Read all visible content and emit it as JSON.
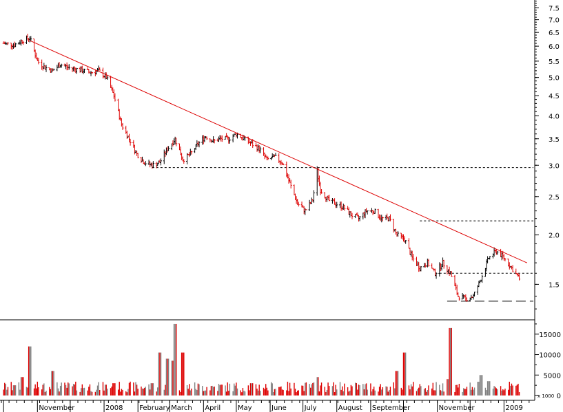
{
  "chart_data": [
    {
      "type": "line",
      "panel": "price",
      "scale": "log",
      "ylim": [
        1.22,
        7.85
      ],
      "y_ticks": [
        "7.5",
        "7.0",
        "6.5",
        "6.0",
        "5.5",
        "5.0",
        "4.5",
        "4.0",
        "3.5",
        "3.0",
        "2.5",
        "2.0",
        "1.5"
      ],
      "x_labels": [
        "November",
        "2008",
        "February",
        "March",
        "April",
        "May",
        "June",
        "July",
        "August",
        "September",
        "November",
        "2009"
      ],
      "grid": false,
      "series": [
        {
          "x": [
            "2007-10-01",
            "2007-10-11",
            "2007-10-18",
            "2007-10-25",
            "2007-11-01",
            "2007-11-08",
            "2007-11-15",
            "2007-11-22",
            "2007-11-29",
            "2007-12-06",
            "2007-12-13",
            "2007-12-20",
            "2007-12-27",
            "2008-01-03",
            "2008-01-10",
            "2008-01-17",
            "2008-01-24",
            "2008-01-31",
            "2008-02-07",
            "2008-02-14",
            "2008-02-21",
            "2008-02-28",
            "2008-03-06",
            "2008-03-13",
            "2008-03-20",
            "2008-03-27",
            "2008-04-03",
            "2008-04-10",
            "2008-04-17",
            "2008-04-24",
            "2008-05-01",
            "2008-05-08",
            "2008-05-15",
            "2008-05-22",
            "2008-05-29",
            "2008-06-05",
            "2008-06-12",
            "2008-06-19",
            "2008-06-26",
            "2008-07-03",
            "2008-07-10",
            "2008-07-14",
            "2008-07-17",
            "2008-07-24",
            "2008-07-31",
            "2008-08-07",
            "2008-08-14",
            "2008-08-21",
            "2008-08-28",
            "2008-09-04",
            "2008-09-11",
            "2008-09-18",
            "2008-09-25",
            "2008-10-02",
            "2008-10-09",
            "2008-10-16",
            "2008-10-23",
            "2008-10-30",
            "2008-11-06",
            "2008-11-13",
            "2008-11-20",
            "2008-11-27",
            "2008-12-04",
            "2008-12-11",
            "2008-12-18",
            "2008-12-25",
            "2009-01-01",
            "2009-01-08",
            "2009-01-15"
          ],
          "y": [
            6.1,
            6.05,
            6.2,
            6.3,
            5.5,
            5.3,
            5.2,
            5.4,
            5.3,
            5.25,
            5.2,
            5.15,
            5.2,
            5.0,
            4.5,
            3.8,
            3.5,
            3.2,
            3.05,
            3.0,
            3.05,
            3.3,
            3.5,
            3.1,
            3.2,
            3.4,
            3.55,
            3.45,
            3.5,
            3.5,
            3.6,
            3.5,
            3.4,
            3.3,
            3.1,
            3.15,
            3.05,
            2.7,
            2.4,
            2.3,
            2.45,
            2.9,
            2.6,
            2.45,
            2.4,
            2.35,
            2.25,
            2.2,
            2.3,
            2.3,
            2.2,
            2.2,
            2.0,
            1.95,
            1.75,
            1.65,
            1.7,
            1.6,
            1.7,
            1.6,
            1.4,
            1.38,
            1.4,
            1.55,
            1.75,
            1.82,
            1.75,
            1.65,
            1.55
          ]
        }
      ],
      "trendline": {
        "x": [
          "2007-10-25",
          "2009-01-22"
        ],
        "y": [
          6.2,
          1.7
        ]
      },
      "support_levels": [
        2.96,
        2.17,
        1.6,
        1.36
      ]
    },
    {
      "type": "bar",
      "panel": "volume",
      "ylim": [
        0,
        18500
      ],
      "y_ticks": [
        "15000",
        "10000",
        "5000",
        "0"
      ],
      "unit_label": "x 1000",
      "series": [
        {
          "x": [
            "2007-10-11",
            "2007-10-18",
            "2007-10-25",
            "2007-11-15",
            "2008-01-10",
            "2008-02-14",
            "2008-02-21",
            "2008-02-28",
            "2008-03-04",
            "2008-03-06",
            "2008-03-13",
            "2008-05-15",
            "2008-07-14",
            "2008-09-25",
            "2008-10-02",
            "2008-11-10",
            "2008-11-13",
            "2008-12-11",
            "2008-12-18"
          ],
          "y": [
            2500,
            4500,
            12000,
            6000,
            3000,
            3000,
            10500,
            9000,
            8500,
            17500,
            10500,
            3000,
            4500,
            6000,
            10500,
            4000,
            16500,
            5000,
            3500
          ]
        }
      ]
    }
  ]
}
